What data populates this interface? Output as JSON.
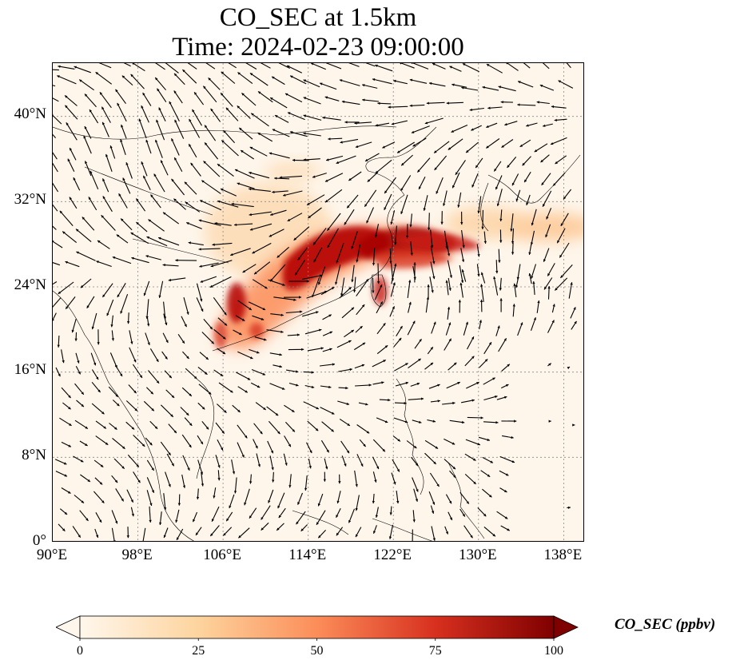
{
  "title_line1": "CO_SEC at 1.5km",
  "title_line2": "Time: 2024-02-23 09:00:00",
  "map": {
    "lon_range": [
      90,
      140
    ],
    "lat_range": [
      0,
      45
    ],
    "lon_ticks": [
      "90°E",
      "98°E",
      "106°E",
      "114°E",
      "122°E",
      "130°E",
      "138°E"
    ],
    "lat_ticks": [
      "0°",
      "8°N",
      "16°N",
      "24°N",
      "32°N",
      "40°N"
    ],
    "gridlines": "dotted",
    "vector_field": "wind arrows"
  },
  "colorbar": {
    "label": "CO_SEC (ppbv)",
    "ticks": [
      "0",
      "25",
      "50",
      "75",
      "100"
    ],
    "colormap": "OrRd",
    "colors": [
      "#fff7ec",
      "#fdd49e",
      "#fc8d59",
      "#d7301f",
      "#7f0000"
    ],
    "extend": "both"
  }
}
